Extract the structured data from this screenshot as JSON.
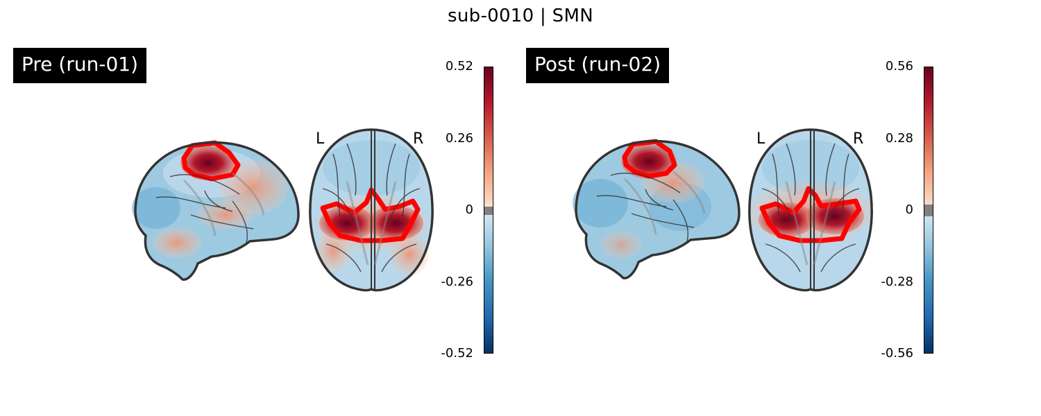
{
  "title": "sub-0010 | SMN",
  "panels": [
    {
      "label": "Pre (run-01)",
      "orientation_left": "L",
      "orientation_right": "R",
      "colorbar": {
        "max": "0.52",
        "mid_pos": "0.26",
        "zero": "0",
        "mid_neg": "-0.26",
        "min": "-0.52"
      }
    },
    {
      "label": "Post (run-02)",
      "orientation_left": "L",
      "orientation_right": "R",
      "colorbar": {
        "max": "0.56",
        "mid_pos": "0.28",
        "zero": "0",
        "mid_neg": "-0.28",
        "min": "-0.56"
      }
    }
  ],
  "colors": {
    "roi_outline": "#ff0000",
    "cmap": "RdBu_r",
    "threshold_band": "#808080"
  }
}
